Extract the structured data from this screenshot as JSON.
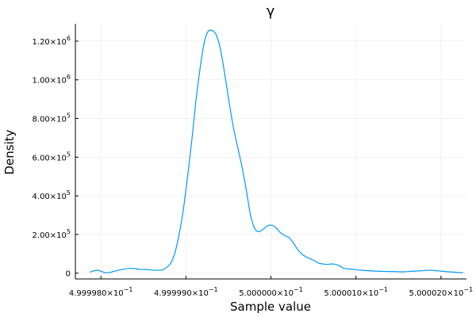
{
  "chart_data": {
    "type": "line",
    "title": "γ",
    "xlabel": "Sample value",
    "ylabel": "Density",
    "grid": true,
    "legend": "none",
    "series_color": "#009AFA",
    "axis_color": "#000000",
    "grid_color": "#e9e9e9",
    "xlim": [
      0.4999977,
      0.5000023
    ],
    "ylim": [
      -30000,
      1290000
    ],
    "x_ticks": [
      {
        "value": 0.499998,
        "mantissa": "4.999980",
        "exponent": "−1"
      },
      {
        "value": 0.499999,
        "mantissa": "4.999990",
        "exponent": "−1"
      },
      {
        "value": 0.5,
        "mantissa": "5.000000",
        "exponent": "−1"
      },
      {
        "value": 0.500001,
        "mantissa": "5.000010",
        "exponent": "−1"
      },
      {
        "value": 0.500002,
        "mantissa": "5.000020",
        "exponent": "−1"
      }
    ],
    "y_ticks": [
      {
        "value": 0,
        "mantissa": "0",
        "exponent": ""
      },
      {
        "value": 200000,
        "mantissa": "2.00",
        "exponent": "5"
      },
      {
        "value": 400000,
        "mantissa": "4.00",
        "exponent": "5"
      },
      {
        "value": 600000,
        "mantissa": "6.00",
        "exponent": "5"
      },
      {
        "value": 800000,
        "mantissa": "8.00",
        "exponent": "5"
      },
      {
        "value": 1000000,
        "mantissa": "1.00",
        "exponent": "6"
      },
      {
        "value": 1200000,
        "mantissa": "1.20",
        "exponent": "6"
      }
    ],
    "series": [
      {
        "x": [
          0.49999787,
          0.49999796,
          0.49999806,
          0.49999816,
          0.49999826,
          0.49999836,
          0.49999846,
          0.49999856,
          0.49999866,
          0.49999876,
          0.49999886,
          0.49999896,
          0.49999906,
          0.49999912,
          0.49999918,
          0.49999922,
          0.49999926,
          0.49999931,
          0.49999936,
          0.49999941,
          0.49999946,
          0.49999951,
          0.49999956,
          0.49999961,
          0.49999966,
          0.49999971,
          0.49999976,
          0.49999981,
          0.49999986,
          0.49999991,
          0.49999996,
          0.50000001,
          0.50000006,
          0.50000011,
          0.50000016,
          0.50000021,
          0.50000026,
          0.50000031,
          0.50000036,
          0.50000041,
          0.50000046,
          0.50000051,
          0.50000056,
          0.50000061,
          0.50000066,
          0.50000071,
          0.50000076,
          0.50000081,
          0.50000086,
          0.50000096,
          0.50000106,
          0.50000116,
          0.50000126,
          0.50000136,
          0.50000146,
          0.50000156,
          0.50000166,
          0.50000176,
          0.50000186,
          0.50000196,
          0.50000206,
          0.50000216,
          0.50000226
        ],
        "y": [
          5000,
          15000,
          2000,
          10000,
          20000,
          25000,
          20000,
          18000,
          15000,
          25000,
          90000,
          300000,
          650000,
          900000,
          1100000,
          1200000,
          1250000,
          1255000,
          1230000,
          1150000,
          1020000,
          880000,
          750000,
          650000,
          550000,
          430000,
          300000,
          230000,
          215000,
          228000,
          245000,
          248000,
          235000,
          210000,
          195000,
          185000,
          160000,
          125000,
          100000,
          85000,
          75000,
          65000,
          52000,
          48000,
          45000,
          48000,
          45000,
          38000,
          25000,
          20000,
          15000,
          12000,
          10000,
          9000,
          8000,
          7000,
          10000,
          12000,
          15000,
          12000,
          8000,
          5000,
          2000
        ]
      }
    ]
  }
}
